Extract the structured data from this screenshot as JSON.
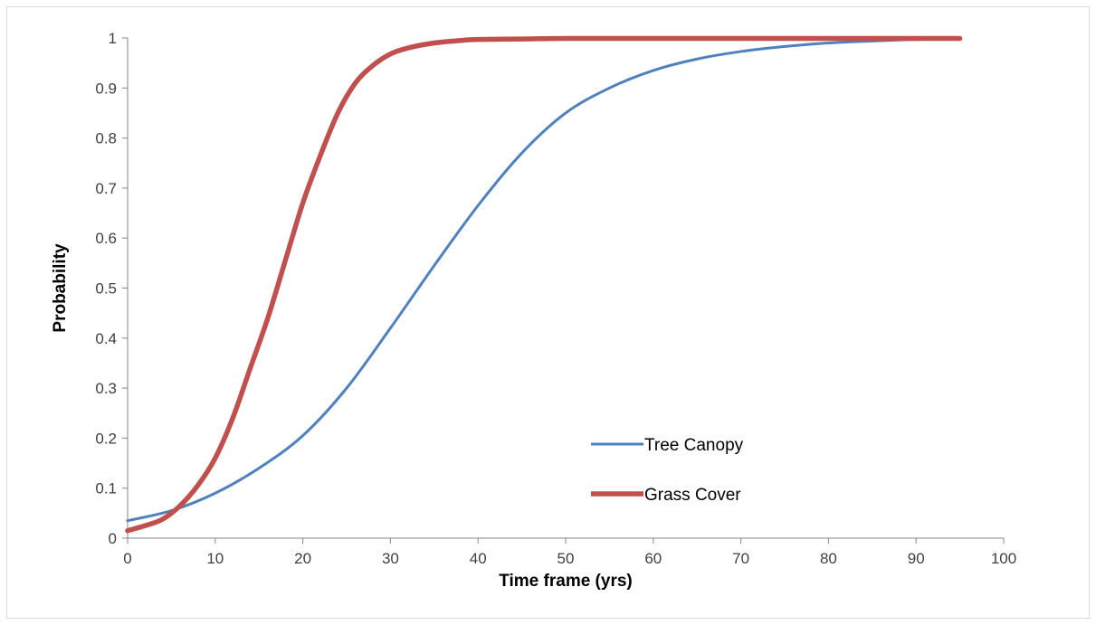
{
  "chart_data": {
    "type": "line",
    "xlabel": "Time frame (yrs)",
    "ylabel": "Probability",
    "xlim": [
      0,
      100
    ],
    "ylim": [
      0,
      1
    ],
    "xticks": [
      0,
      10,
      20,
      30,
      40,
      50,
      60,
      70,
      80,
      90,
      100
    ],
    "yticks": [
      0,
      0.1,
      0.2,
      0.3,
      0.4,
      0.5,
      0.6,
      0.7,
      0.8,
      0.9,
      1
    ],
    "grid": false,
    "legend_position": "lower-right",
    "series": [
      {
        "name": "Tree Canopy",
        "color": "#4f81bd",
        "x": [
          0,
          5,
          10,
          15,
          20,
          25,
          30,
          35,
          40,
          45,
          50,
          55,
          60,
          65,
          70,
          75,
          80,
          85,
          90,
          95
        ],
        "y": [
          0.035,
          0.055,
          0.09,
          0.14,
          0.205,
          0.3,
          0.42,
          0.545,
          0.665,
          0.77,
          0.85,
          0.9,
          0.935,
          0.958,
          0.973,
          0.983,
          0.99,
          0.994,
          0.997,
          0.998
        ]
      },
      {
        "name": "Grass Cover",
        "color": "#c0504d",
        "x": [
          0,
          2,
          4,
          6,
          8,
          10,
          12,
          14,
          16,
          18,
          20,
          22,
          24,
          26,
          28,
          30,
          32,
          35,
          38,
          40,
          45,
          50,
          60,
          70,
          80,
          90,
          95
        ],
        "y": [
          0.015,
          0.025,
          0.038,
          0.065,
          0.105,
          0.16,
          0.24,
          0.34,
          0.44,
          0.555,
          0.67,
          0.765,
          0.85,
          0.91,
          0.945,
          0.968,
          0.98,
          0.99,
          0.995,
          0.997,
          0.998,
          0.999,
          0.999,
          0.999,
          0.999,
          0.999,
          0.999
        ]
      }
    ]
  }
}
